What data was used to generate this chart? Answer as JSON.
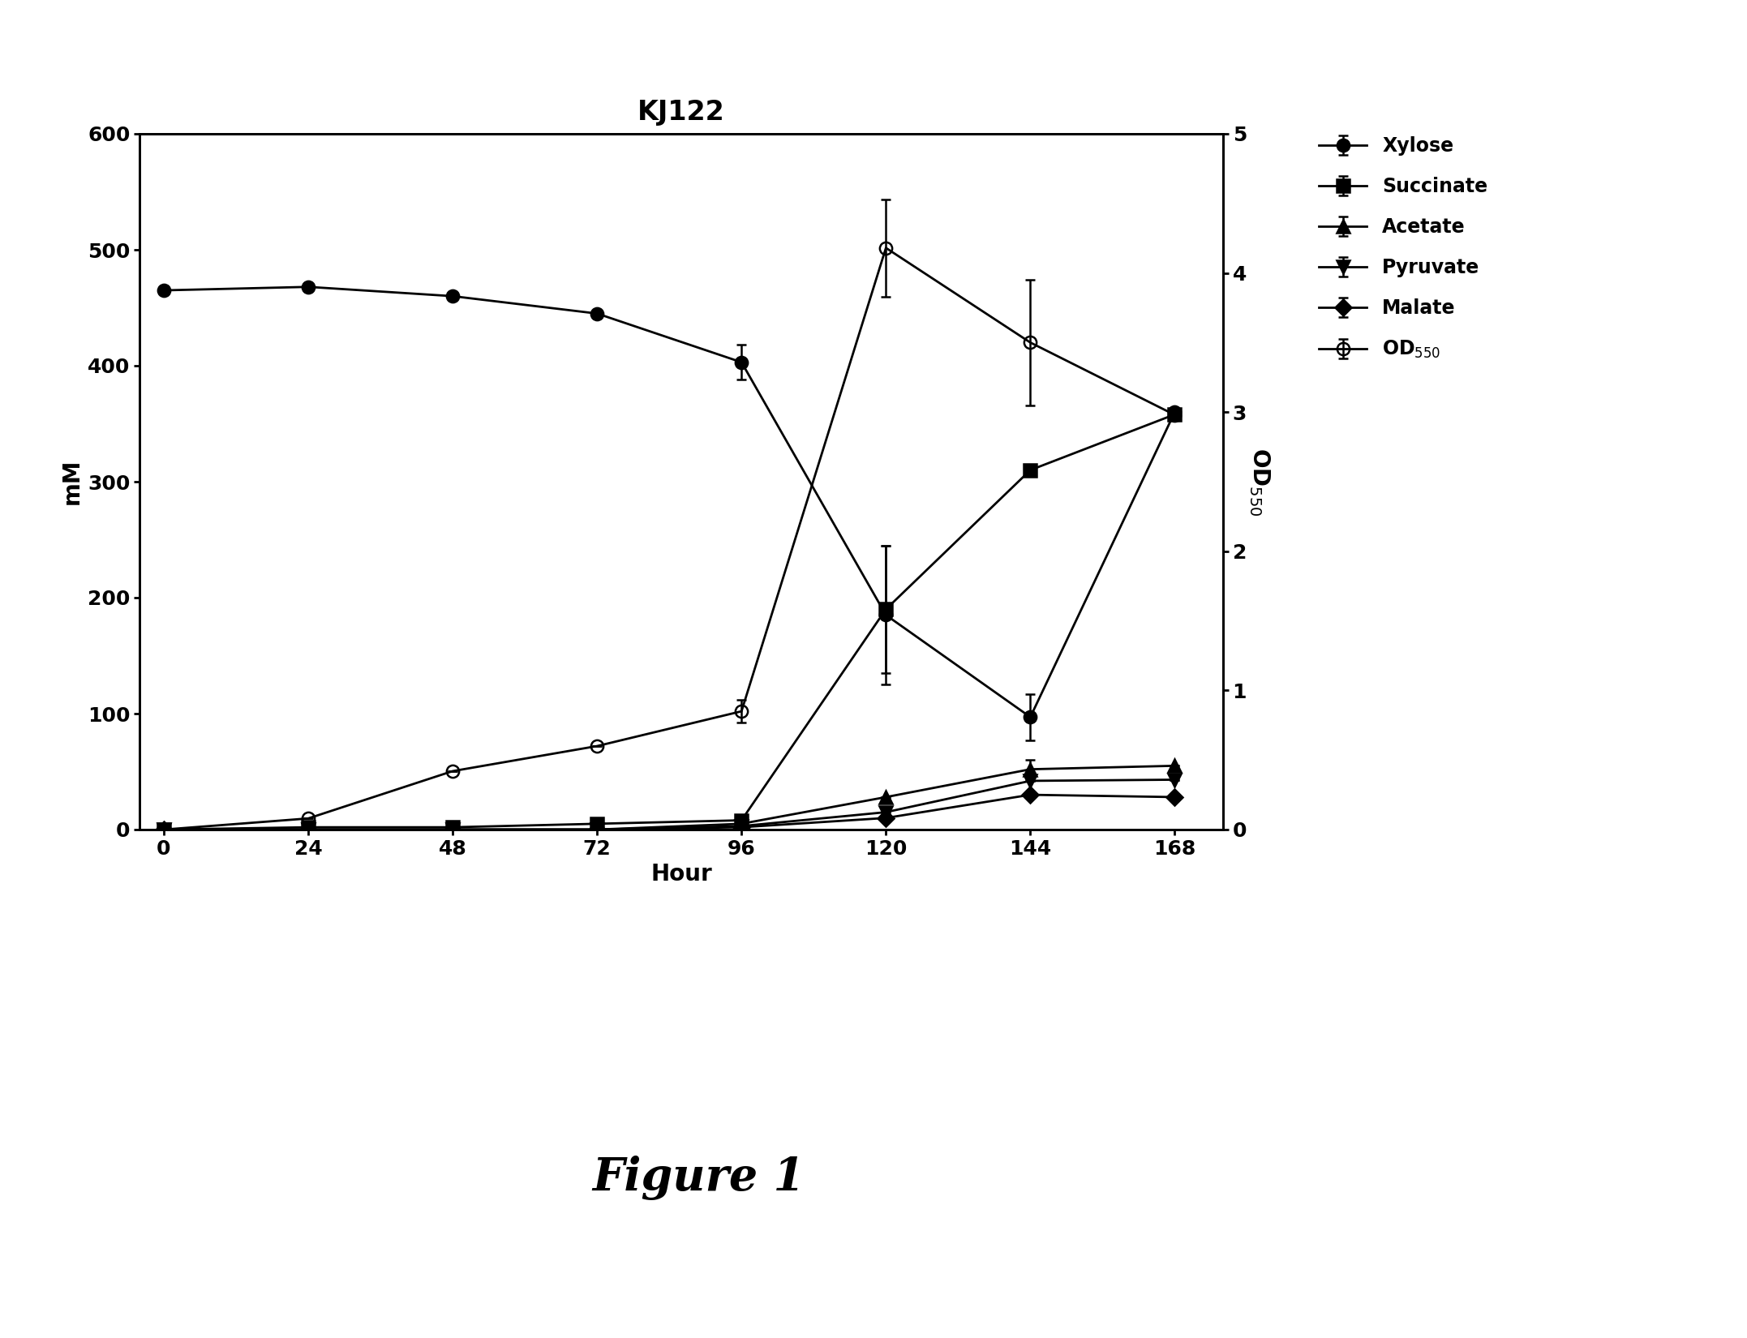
{
  "title": "KJ122",
  "xlabel": "Hour",
  "ylabel_left": "mM",
  "ylabel_right": "OD$_{550}$",
  "figure_label": "Figure 1",
  "hours": [
    0,
    24,
    48,
    72,
    96,
    120,
    144,
    168
  ],
  "xylose": {
    "y": [
      465,
      468,
      460,
      445,
      403,
      185,
      97,
      360
    ],
    "yerr": [
      0,
      0,
      0,
      0,
      15,
      60,
      20,
      0
    ],
    "label": "Xylose",
    "marker": "o",
    "markersize": 11,
    "fillstyle": "full"
  },
  "succinate": {
    "y": [
      0,
      2,
      2,
      5,
      8,
      190,
      310,
      358
    ],
    "yerr": [
      0,
      0,
      0,
      0,
      0,
      55,
      0,
      0
    ],
    "label": "Succinate",
    "marker": "s",
    "markersize": 11,
    "fillstyle": "full"
  },
  "acetate": {
    "y": [
      0,
      0,
      0,
      0,
      5,
      28,
      52,
      55
    ],
    "yerr": [
      0,
      0,
      0,
      0,
      0,
      0,
      8,
      0
    ],
    "label": "Acetate",
    "marker": "^",
    "markersize": 11,
    "fillstyle": "full"
  },
  "pyruvate": {
    "y": [
      0,
      0,
      0,
      0,
      3,
      15,
      42,
      43
    ],
    "yerr": [
      0,
      0,
      0,
      0,
      0,
      0,
      0,
      0
    ],
    "label": "Pyruvate",
    "marker": "v",
    "markersize": 11,
    "fillstyle": "full"
  },
  "malate": {
    "y": [
      0,
      0,
      0,
      0,
      2,
      10,
      30,
      28
    ],
    "yerr": [
      0,
      0,
      0,
      0,
      0,
      0,
      0,
      0
    ],
    "label": "Malate",
    "marker": "D",
    "markersize": 10,
    "fillstyle": "full"
  },
  "od550": {
    "y": [
      0.0,
      0.08,
      0.42,
      0.6,
      0.85,
      4.18,
      3.5,
      2.98
    ],
    "yerr": [
      0,
      0,
      0,
      0,
      0.08,
      0.35,
      0.45,
      0
    ],
    "label": "OD$_{550}$",
    "marker": "o",
    "markersize": 11,
    "fillstyle": "none"
  },
  "ylim_left": [
    0,
    600
  ],
  "ylim_right": [
    0,
    5
  ],
  "yticks_left": [
    0,
    100,
    200,
    300,
    400,
    500,
    600
  ],
  "yticks_right": [
    0,
    1,
    2,
    3,
    4,
    5
  ],
  "xticks": [
    0,
    24,
    48,
    72,
    96,
    120,
    144,
    168
  ],
  "xlim": [
    -4,
    176
  ],
  "background_color": "#ffffff",
  "linewidth": 2.0,
  "color": "black",
  "title_fontsize": 24,
  "label_fontsize": 20,
  "tick_fontsize": 18,
  "legend_fontsize": 17,
  "figure_label_fontsize": 40
}
